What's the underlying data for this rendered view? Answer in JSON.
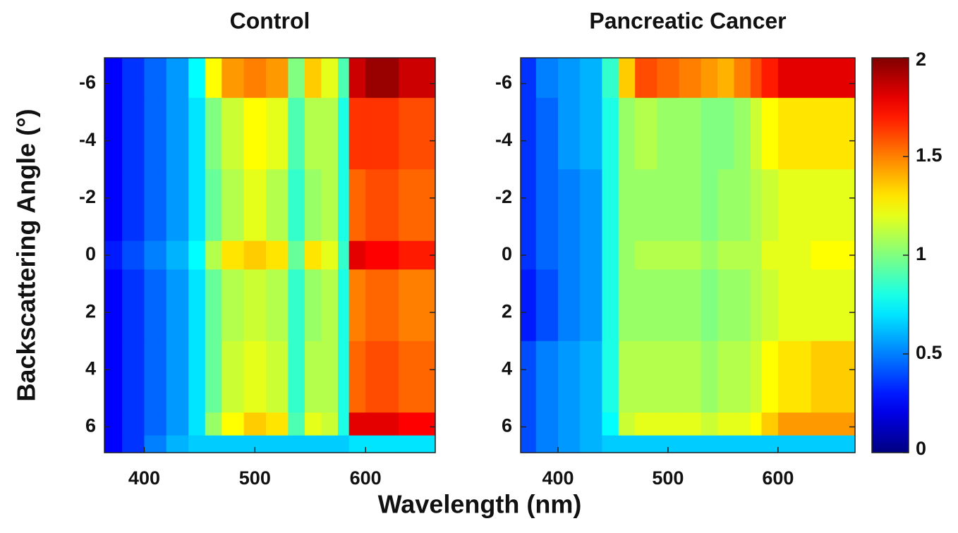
{
  "figure": {
    "xlabel": "Wavelength (nm)",
    "ylabel": "Backscattering Angle (°)"
  },
  "chart_data": [
    {
      "type": "heatmap",
      "title": "Control",
      "colormap": "jet",
      "clim": [
        0,
        2
      ],
      "xedges": [
        364,
        380,
        400,
        420,
        440,
        455,
        470,
        490,
        510,
        530,
        545,
        560,
        575,
        585,
        600,
        630,
        663
      ],
      "yedges": [
        -6.9,
        -5.5,
        -3,
        -0.5,
        0.5,
        3,
        5.5,
        6.3,
        6.9
      ],
      "xlim": [
        364,
        663
      ],
      "ylim": [
        -6.9,
        6.9
      ],
      "xticks": [
        400,
        500,
        600
      ],
      "yticks": [
        -6,
        -4,
        -2,
        0,
        2,
        4,
        6
      ],
      "values": [
        [
          0.25,
          0.35,
          0.45,
          0.55,
          0.75,
          1.25,
          1.45,
          1.5,
          1.45,
          1.0,
          1.35,
          1.2,
          0.9,
          1.85,
          1.95,
          1.85
        ],
        [
          0.25,
          0.35,
          0.45,
          0.55,
          0.7,
          1.0,
          1.15,
          1.25,
          1.2,
          0.9,
          1.1,
          1.1,
          0.8,
          1.65,
          1.65,
          1.6
        ],
        [
          0.25,
          0.35,
          0.45,
          0.55,
          0.7,
          0.95,
          1.1,
          1.2,
          1.1,
          0.85,
          1.05,
          1.1,
          0.8,
          1.55,
          1.6,
          1.55
        ],
        [
          0.3,
          0.4,
          0.5,
          0.6,
          0.75,
          1.1,
          1.3,
          1.35,
          1.3,
          0.95,
          1.3,
          1.2,
          0.85,
          1.8,
          1.75,
          1.7
        ],
        [
          0.25,
          0.35,
          0.45,
          0.55,
          0.7,
          0.95,
          1.1,
          1.15,
          1.1,
          0.85,
          1.05,
          1.1,
          0.8,
          1.5,
          1.55,
          1.5
        ],
        [
          0.25,
          0.35,
          0.45,
          0.55,
          0.7,
          0.95,
          1.15,
          1.2,
          1.15,
          0.85,
          1.1,
          1.1,
          0.8,
          1.55,
          1.6,
          1.55
        ],
        [
          0.25,
          0.35,
          0.45,
          0.55,
          0.7,
          1.05,
          1.25,
          1.35,
          1.3,
          0.9,
          1.2,
          1.15,
          0.8,
          1.8,
          1.8,
          1.75
        ],
        [
          0.25,
          0.35,
          0.5,
          0.6,
          0.65,
          0.65,
          0.65,
          0.65,
          0.65,
          0.65,
          0.65,
          0.65,
          0.65,
          0.7,
          0.7,
          0.7
        ]
      ]
    },
    {
      "type": "heatmap",
      "title": "Pancreatic Cancer",
      "colormap": "jet",
      "clim": [
        0,
        2
      ],
      "xedges": [
        366,
        380,
        400,
        420,
        440,
        455,
        470,
        490,
        510,
        530,
        545,
        560,
        575,
        585,
        600,
        630,
        670
      ],
      "yedges": [
        -6.9,
        -5.5,
        -3,
        -0.5,
        0.5,
        3,
        5.5,
        6.3,
        6.9
      ],
      "xlim": [
        366,
        670
      ],
      "ylim": [
        -6.9,
        6.9
      ],
      "xticks": [
        400,
        500,
        600
      ],
      "yticks": [
        -6,
        -4,
        -2,
        0,
        2,
        4,
        6
      ],
      "values": [
        [
          0.35,
          0.5,
          0.55,
          0.6,
          0.85,
          1.35,
          1.6,
          1.55,
          1.5,
          1.45,
          1.4,
          1.5,
          1.6,
          1.7,
          1.8,
          1.8
        ],
        [
          0.35,
          0.45,
          0.55,
          0.6,
          0.8,
          1.05,
          1.1,
          1.05,
          1.05,
          1.0,
          1.0,
          1.05,
          1.15,
          1.25,
          1.3,
          1.3
        ],
        [
          0.35,
          0.45,
          0.5,
          0.55,
          0.8,
          1.05,
          1.05,
          1.05,
          1.05,
          1.0,
          1.05,
          1.05,
          1.1,
          1.15,
          1.2,
          1.2
        ],
        [
          0.35,
          0.45,
          0.5,
          0.55,
          0.8,
          1.05,
          1.1,
          1.1,
          1.1,
          1.05,
          1.1,
          1.1,
          1.1,
          1.2,
          1.2,
          1.25
        ],
        [
          0.3,
          0.4,
          0.5,
          0.55,
          0.8,
          1.05,
          1.05,
          1.05,
          1.05,
          1.0,
          1.05,
          1.05,
          1.1,
          1.15,
          1.2,
          1.2
        ],
        [
          0.4,
          0.5,
          0.55,
          0.6,
          0.8,
          1.1,
          1.1,
          1.1,
          1.1,
          1.05,
          1.1,
          1.1,
          1.15,
          1.25,
          1.3,
          1.35
        ],
        [
          0.4,
          0.5,
          0.55,
          0.6,
          0.75,
          1.15,
          1.2,
          1.2,
          1.2,
          1.15,
          1.2,
          1.2,
          1.25,
          1.35,
          1.45,
          1.45
        ],
        [
          0.4,
          0.5,
          0.55,
          0.6,
          0.65,
          0.65,
          0.65,
          0.65,
          0.65,
          0.65,
          0.65,
          0.65,
          0.65,
          0.65,
          0.65,
          0.65
        ]
      ]
    },
    {
      "type": "colorbar",
      "colormap": "jet",
      "ylim": [
        0,
        2
      ],
      "yticks": [
        0,
        0.5,
        1,
        1.5,
        2
      ]
    }
  ]
}
